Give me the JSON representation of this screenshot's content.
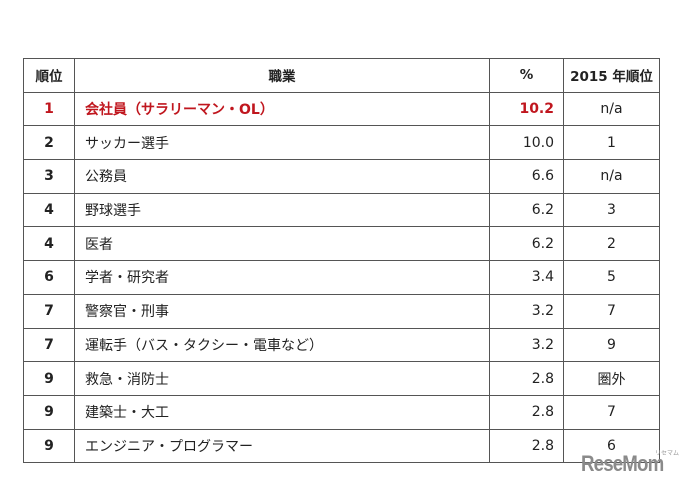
{
  "table": {
    "headers": {
      "rank": "順位",
      "occupation": "職業",
      "percent": "%",
      "prev_rank": "2015 年順位"
    },
    "rows": [
      {
        "rank": "1",
        "occupation": "会社員（サラリーマン・OL）",
        "percent": "10.2",
        "prev_rank": "n/a",
        "highlight": true
      },
      {
        "rank": "2",
        "occupation": "サッカー選手",
        "percent": "10.0",
        "prev_rank": "1"
      },
      {
        "rank": "3",
        "occupation": "公務員",
        "percent": "6.6",
        "prev_rank": "n/a"
      },
      {
        "rank": "4",
        "occupation": "野球選手",
        "percent": "6.2",
        "prev_rank": "3"
      },
      {
        "rank": "4",
        "occupation": "医者",
        "percent": "6.2",
        "prev_rank": "2"
      },
      {
        "rank": "6",
        "occupation": "学者・研究者",
        "percent": "3.4",
        "prev_rank": "5"
      },
      {
        "rank": "7",
        "occupation": "警察官・刑事",
        "percent": "3.2",
        "prev_rank": "7"
      },
      {
        "rank": "7",
        "occupation": "運転手（バス・タクシー・電車など）",
        "percent": "3.2",
        "prev_rank": "9"
      },
      {
        "rank": "9",
        "occupation": "救急・消防士",
        "percent": "2.8",
        "prev_rank": "圏外"
      },
      {
        "rank": "9",
        "occupation": "建築士・大工",
        "percent": "2.8",
        "prev_rank": "7"
      },
      {
        "rank": "9",
        "occupation": "エンジニア・プログラマー",
        "percent": "2.8",
        "prev_rank": "6"
      }
    ]
  },
  "watermark": {
    "text": "ReseMom",
    "kana": "リセマム"
  },
  "colors": {
    "highlight": "#c0161e",
    "border": "#555555"
  }
}
